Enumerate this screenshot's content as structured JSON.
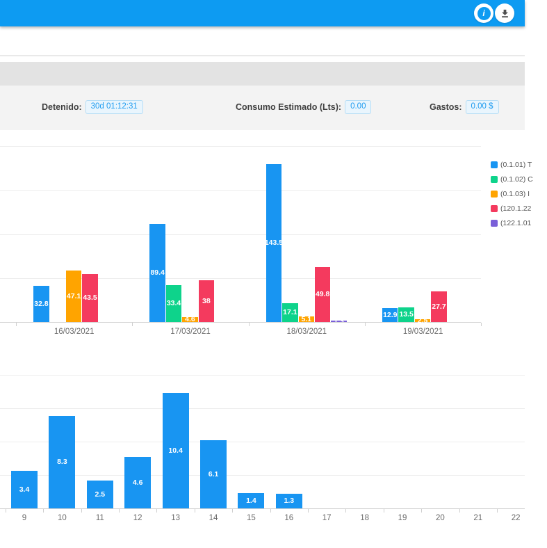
{
  "header": {
    "info_glyph": "i",
    "buttons": [
      {
        "name": "info"
      },
      {
        "name": "download"
      }
    ]
  },
  "stats": {
    "items": [
      {
        "label": "Detenido:",
        "value": "30d 01:12:31"
      },
      {
        "label": "Consumo Estimado (Lts):",
        "value": "0.00"
      },
      {
        "label": "Gastos:",
        "value": "0.00 $"
      }
    ]
  },
  "colors": {
    "header_blue": "#0D9BF2",
    "value_text_blue": "#1D9BF0",
    "pill_bg": "#E9F5FD",
    "pill_border": "#B5DDF5",
    "band_dark": "#E3E3E3",
    "band_light": "#F3F3F3",
    "series_blue": "#1895F2",
    "series_green": "#0ED38B",
    "series_orange": "#FFA400",
    "series_red": "#F43A5E",
    "series_purple": "#7A5FD8"
  },
  "chart_data": [
    {
      "type": "bar",
      "title": "",
      "categories": [
        "16/03/2021",
        "17/03/2021",
        "18/03/2021",
        "19/03/2021"
      ],
      "series": [
        {
          "name": "(0.1.01) T",
          "color": "#1895F2",
          "values": [
            32.8,
            89.4,
            143.5,
            12.9
          ]
        },
        {
          "name": "(0.1.02) C",
          "color": "#0ED38B",
          "values": [
            0,
            33.4,
            17.1,
            13.5
          ]
        },
        {
          "name": "(0.1.03) I",
          "color": "#FFA400",
          "values": [
            47.1,
            4.6,
            5.1,
            2.5
          ]
        },
        {
          "name": "(120.1.22",
          "color": "#F43A5E",
          "values": [
            43.5,
            38,
            49.8,
            27.7
          ]
        },
        {
          "name": "(122.1.01",
          "color": "#7A5FD8",
          "values": [
            0,
            0,
            1.3,
            0
          ]
        }
      ],
      "xlabel": "",
      "ylabel": "",
      "ylim": [
        0,
        160
      ],
      "grid_step": 40,
      "grid": true,
      "legend_position": "right",
      "value_labels": "inside-center-white"
    },
    {
      "type": "bar",
      "title": "",
      "categories": [
        "9",
        "10",
        "11",
        "12",
        "13",
        "14",
        "15",
        "16",
        "17",
        "18",
        "19",
        "20",
        "21",
        "22"
      ],
      "values": [
        3.4,
        8.3,
        2.5,
        4.6,
        10.4,
        6.1,
        1.4,
        1.3,
        0,
        0,
        0,
        0,
        0,
        0
      ],
      "series_color": "#1895F2",
      "xlabel": "",
      "ylabel": "",
      "ylim": [
        0,
        12
      ],
      "grid_step": 3,
      "grid": true,
      "legend_position": "none",
      "value_labels": "inside-center-white"
    }
  ]
}
